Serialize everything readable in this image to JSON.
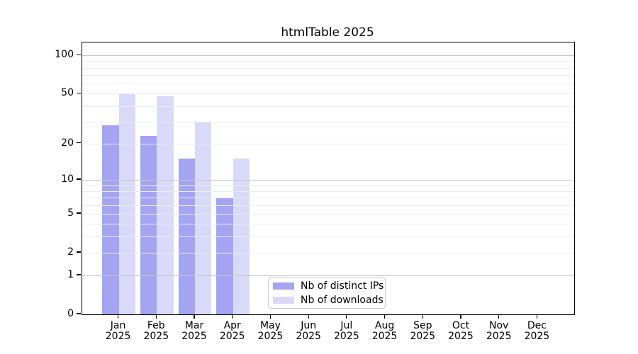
{
  "title": "htmlTable 2025",
  "chart_data": {
    "type": "bar",
    "title": "htmlTable 2025",
    "categories": [
      "Jan",
      "Feb",
      "Mar",
      "Apr",
      "May",
      "Jun",
      "Jul",
      "Aug",
      "Sep",
      "Oct",
      "Nov",
      "Dec"
    ],
    "category_year": "2025",
    "series": [
      {
        "name": "Nb of distinct IPs",
        "color": "#a4a4f3",
        "values": [
          28,
          23,
          15,
          7,
          0,
          0,
          0,
          0,
          0,
          0,
          0,
          0
        ]
      },
      {
        "name": "Nb of downloads",
        "color": "#d9d9f9",
        "values": [
          50,
          48,
          30,
          15,
          0,
          0,
          0,
          0,
          0,
          0,
          0,
          0
        ]
      }
    ],
    "xlabel": "",
    "ylabel": "",
    "yticks": [
      100,
      50,
      20,
      10,
      5,
      2,
      1,
      0
    ],
    "yscale": "log1p",
    "ylim": [
      0,
      127
    ],
    "grid": "on",
    "legend_position": "bottom-center"
  }
}
